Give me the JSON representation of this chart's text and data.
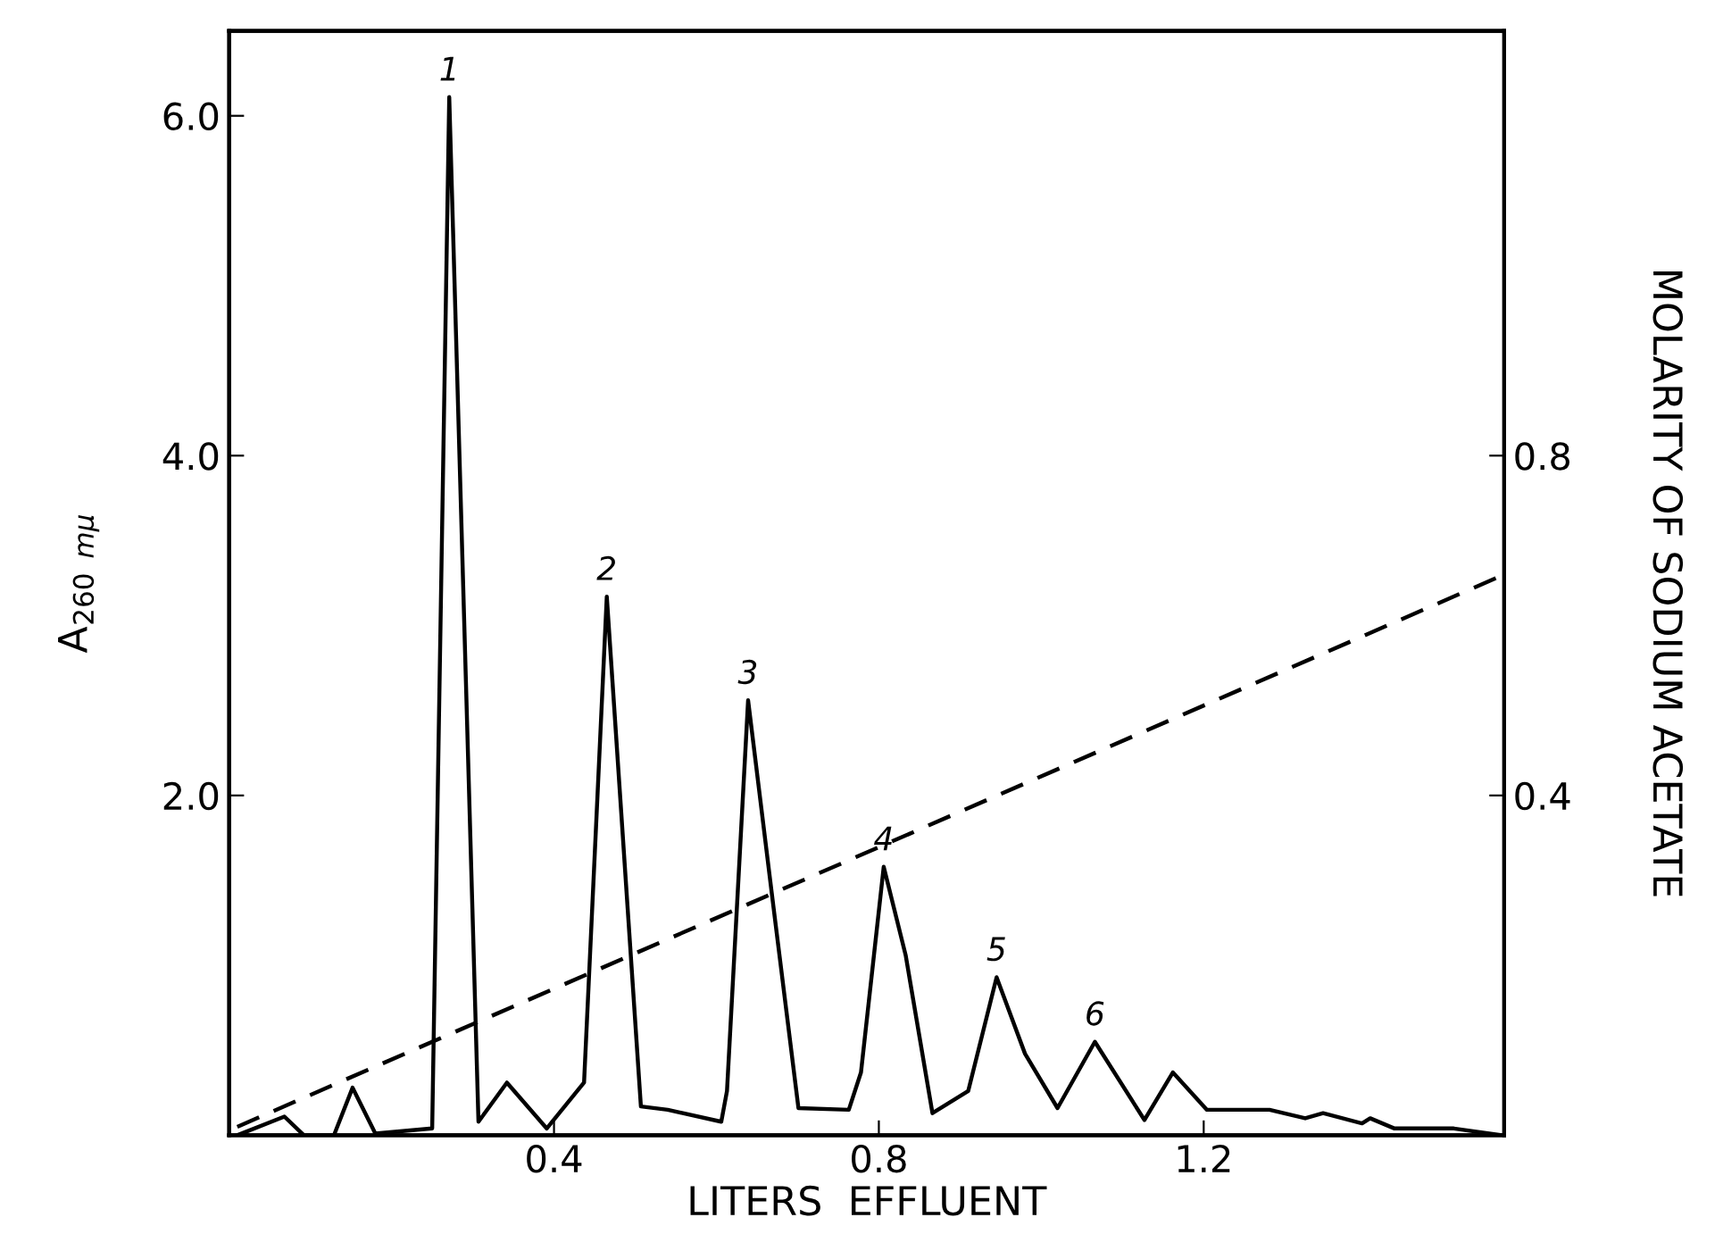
{
  "chart_data": {
    "type": "line",
    "xlabel": "LITERS  EFFLUENT",
    "ylabel": "A$_{260}$ $_{mμ}$",
    "y2label": "MOLARITY OF SODIUM ACETATE",
    "xlim": [
      0,
      1.57
    ],
    "xticks": [
      {
        "value": 0.4,
        "label": "0.4"
      },
      {
        "value": 0.8,
        "label": "0.8"
      },
      {
        "value": 1.2,
        "label": "1.2"
      }
    ],
    "ylim": [
      0,
      6.5
    ],
    "yticks": [
      {
        "value": 2.0,
        "label": "2.0"
      },
      {
        "value": 4.0,
        "label": "4.0"
      },
      {
        "value": 6.0,
        "label": "6.0"
      }
    ],
    "y2lim": [
      0,
      1.3
    ],
    "y2ticks": [
      0.4,
      0.8
    ],
    "grid": false,
    "marker": "none",
    "series": [
      {
        "color": "#000000",
        "line_style": "solid",
        "x": [
          0.01,
          0.068,
          0.092,
          0.129,
          0.152,
          0.18,
          0.25,
          0.271,
          0.307,
          0.342,
          0.391,
          0.437,
          0.465,
          0.507,
          0.54,
          0.606,
          0.613,
          0.639,
          0.668,
          0.701,
          0.763,
          0.778,
          0.806,
          0.833,
          0.866,
          0.91,
          0.945,
          0.98,
          1.02,
          1.066,
          1.127,
          1.162,
          1.204,
          1.281,
          1.325,
          1.347,
          1.395,
          1.405,
          1.435,
          1.508,
          1.567
        ],
        "values": [
          0,
          0.11,
          0,
          0,
          0.28,
          0.01,
          0.04,
          6.11,
          0.08,
          0.31,
          0.04,
          0.31,
          3.17,
          0.17,
          0.15,
          0.08,
          0.26,
          2.56,
          1.43,
          0.16,
          0.15,
          0.37,
          1.58,
          1.06,
          0.13,
          0.26,
          0.93,
          0.48,
          0.16,
          0.55,
          0.09,
          0.37,
          0.15,
          0.15,
          0.1,
          0.13,
          0.07,
          0.1,
          0.04,
          0.04,
          0
        ]
      },
      {
        "color": "#000000",
        "line_style": "dashed",
        "axis": "y2",
        "x": [
          0.01,
          1.57
        ],
        "values": [
          0.01,
          0.66
        ]
      }
    ],
    "annotations": [
      {
        "text": "1",
        "x": 0.271,
        "y": 6.11
      },
      {
        "text": "2",
        "x": 0.465,
        "y": 3.17
      },
      {
        "text": "3",
        "x": 0.639,
        "y": 2.56
      },
      {
        "text": "4",
        "x": 0.806,
        "y": 1.58
      },
      {
        "text": "5",
        "x": 0.945,
        "y": 0.93
      },
      {
        "text": "6",
        "x": 1.066,
        "y": 0.55
      }
    ]
  }
}
